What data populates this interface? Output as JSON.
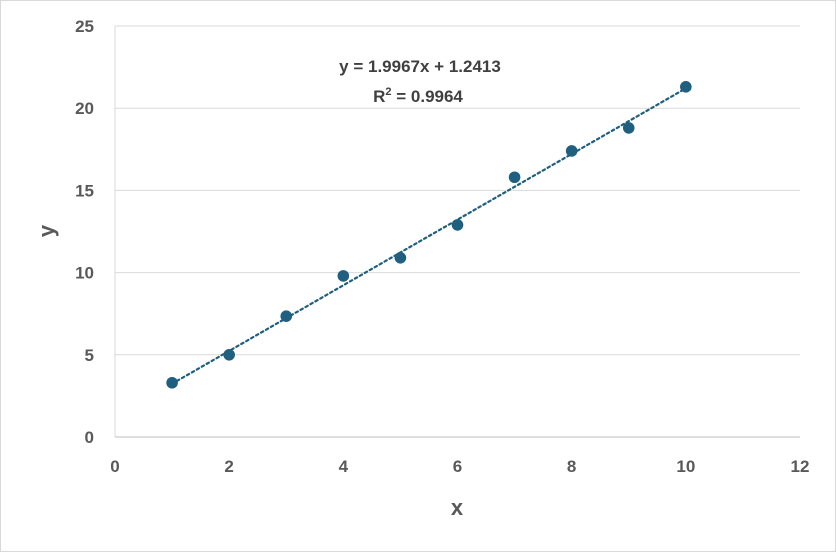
{
  "chart_data": {
    "type": "scatter",
    "xlabel": "x",
    "ylabel": "y",
    "xlim": [
      0,
      12
    ],
    "ylim": [
      0,
      25
    ],
    "x_ticks": [
      0,
      2,
      4,
      6,
      8,
      10,
      12
    ],
    "y_ticks": [
      0,
      5,
      10,
      15,
      20,
      25
    ],
    "grid": "horizontal",
    "series": [
      {
        "x": [
          1,
          2,
          3,
          4,
          5,
          6,
          7,
          8,
          9,
          10
        ],
        "y": [
          3.3,
          5.0,
          7.35,
          9.8,
          10.9,
          12.9,
          15.8,
          17.4,
          18.8,
          21.3
        ],
        "color": "#1f5f7f"
      }
    ],
    "trendline": {
      "type": "linear",
      "slope": 1.9967,
      "intercept": 1.2413,
      "style": "dotted",
      "color": "#1f5f7f"
    },
    "annotations": {
      "equation": "y = 1.9967x + 1.2413",
      "r_squared_label": "R",
      "r_squared_sup": "2",
      "r_squared_value": " = 0.9964"
    }
  }
}
